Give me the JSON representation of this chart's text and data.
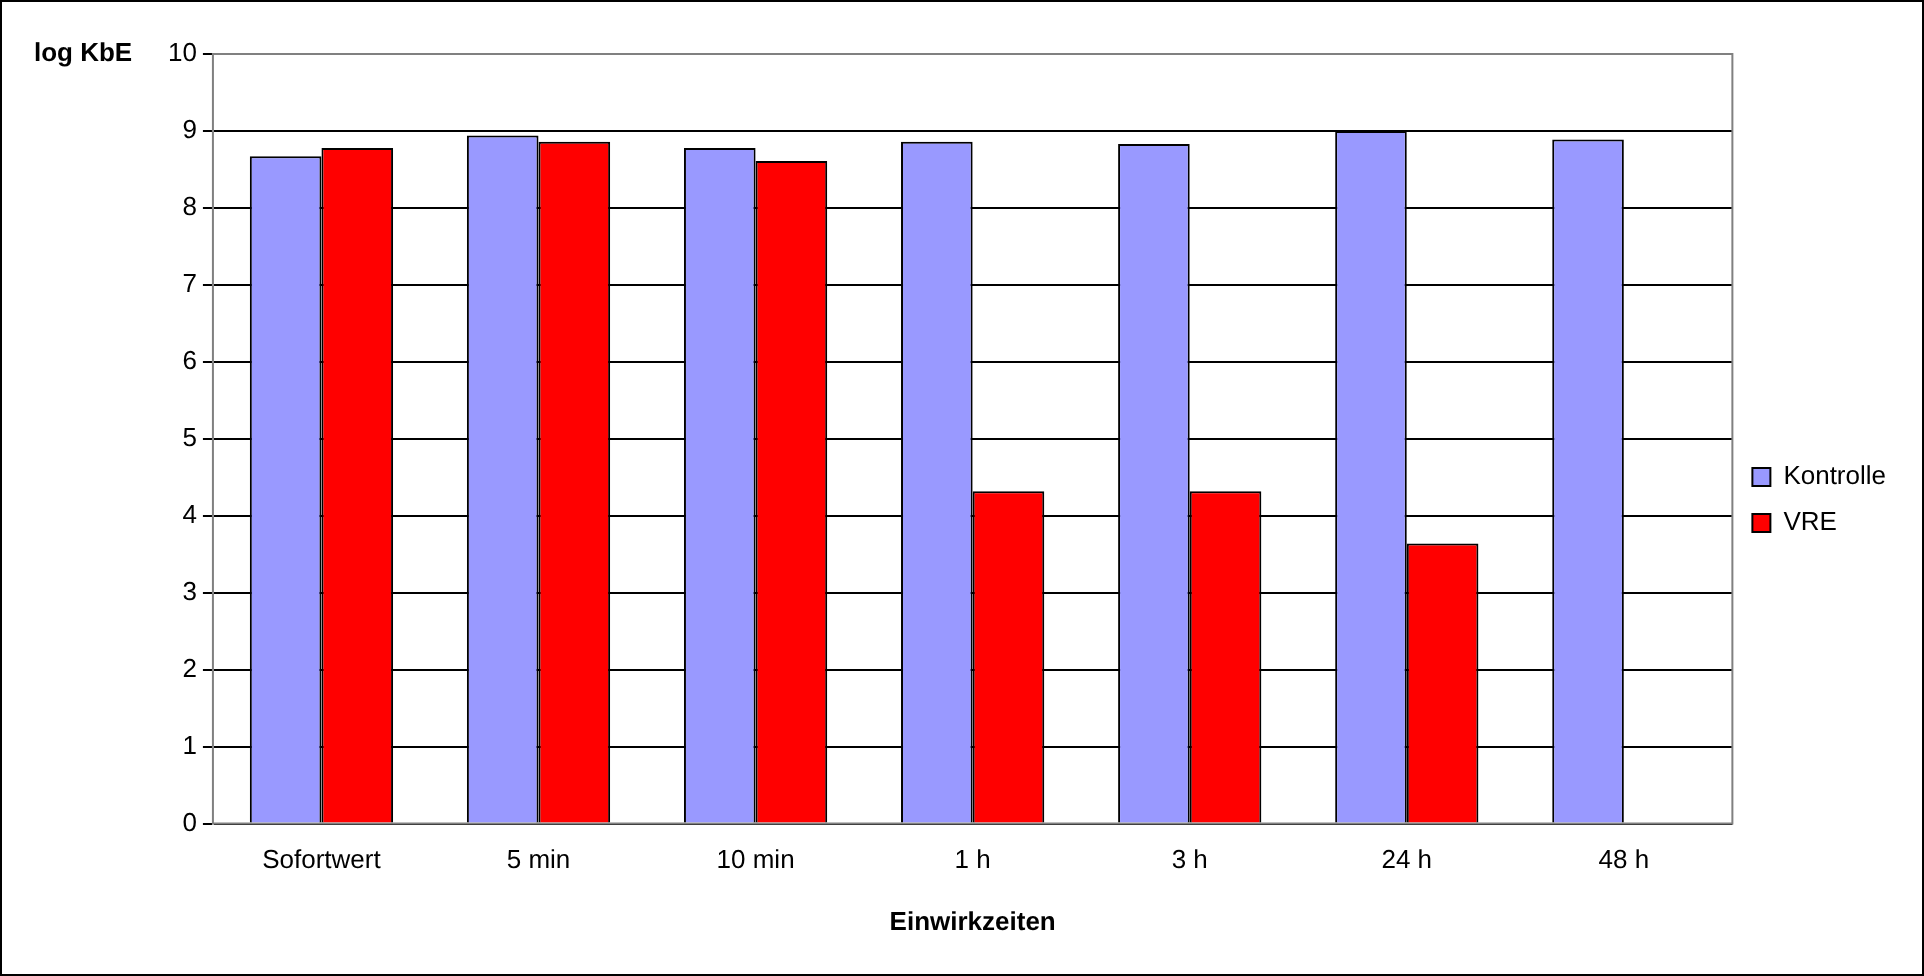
{
  "chart_data": {
    "type": "bar",
    "xlabel": "Einwirkzeiten",
    "ylabel": "log KbE",
    "categories": [
      "Sofortwert",
      "5 min",
      "10 min",
      "1 h",
      "3 h",
      "24 h",
      "48 h"
    ],
    "series": [
      {
        "name": "Kontrolle",
        "color": "#9999ff",
        "values": [
          8.67,
          8.94,
          8.78,
          8.86,
          8.83,
          9.0,
          8.89
        ]
      },
      {
        "name": "VRE",
        "color": "#ff0000",
        "values": [
          8.78,
          8.86,
          8.61,
          4.32,
          4.32,
          3.64,
          null
        ]
      }
    ],
    "ylim": [
      0,
      10
    ],
    "yticks": [
      0,
      1,
      2,
      3,
      4,
      5,
      6,
      7,
      8,
      9,
      10
    ],
    "grid": "y",
    "legend": "right"
  }
}
